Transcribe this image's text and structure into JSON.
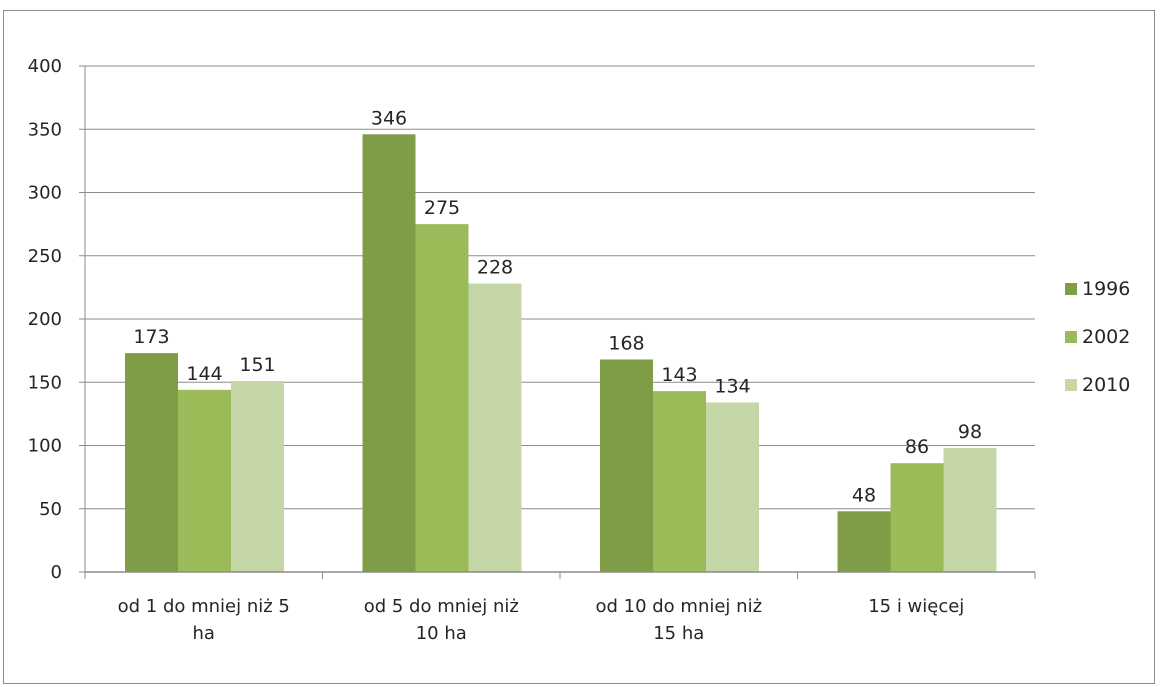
{
  "chart_data": {
    "type": "bar",
    "title": "",
    "xlabel": "",
    "ylabel": "",
    "ylim": [
      0,
      400
    ],
    "yticks": [
      0,
      50,
      100,
      150,
      200,
      250,
      300,
      350,
      400
    ],
    "grid": true,
    "legend_position": "right",
    "categories": [
      [
        "od 1 do mniej niż 5",
        "ha"
      ],
      [
        "od 5 do mniej niż",
        "10 ha"
      ],
      [
        "od 10 do mniej niż",
        "15 ha"
      ],
      [
        "15 i więcej"
      ]
    ],
    "series": [
      {
        "name": "1996",
        "color": "#7f9c47",
        "values": [
          173,
          346,
          168,
          48
        ]
      },
      {
        "name": "2002",
        "color": "#9bbb59",
        "values": [
          144,
          275,
          143,
          86
        ]
      },
      {
        "name": "2010",
        "color": "#c5d7a6",
        "values": [
          151,
          228,
          134,
          98
        ]
      }
    ]
  }
}
